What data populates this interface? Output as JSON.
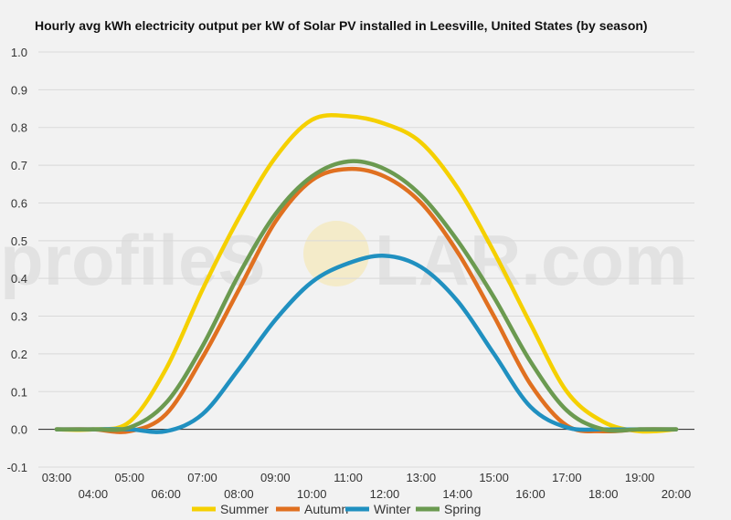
{
  "chart_data": {
    "type": "line",
    "title": "Hourly avg kWh electricity output per kW of Solar PV installed in Leesville, United States (by season)",
    "xlabel": "",
    "ylabel": "",
    "ylim": [
      -0.1,
      1.0
    ],
    "yticks": [
      "-0.1",
      "0.0",
      "0.1",
      "0.2",
      "0.3",
      "0.4",
      "0.5",
      "0.6",
      "0.7",
      "0.8",
      "0.9",
      "1.0"
    ],
    "categories": [
      "03:00",
      "04:00",
      "05:00",
      "06:00",
      "07:00",
      "08:00",
      "09:00",
      "10:00",
      "11:00",
      "12:00",
      "13:00",
      "14:00",
      "15:00",
      "16:00",
      "17:00",
      "18:00",
      "19:00",
      "20:00"
    ],
    "grid": true,
    "legend_position": "bottom",
    "series": [
      {
        "name": "Summer",
        "color": "#f5d000",
        "values": [
          0.0,
          0.0,
          0.02,
          0.16,
          0.37,
          0.56,
          0.72,
          0.82,
          0.83,
          0.81,
          0.76,
          0.64,
          0.47,
          0.28,
          0.1,
          0.02,
          -0.005,
          0.0
        ]
      },
      {
        "name": "Autumn",
        "color": "#e07020",
        "values": [
          0.0,
          0.0,
          -0.005,
          0.04,
          0.19,
          0.37,
          0.55,
          0.66,
          0.69,
          0.67,
          0.6,
          0.47,
          0.3,
          0.12,
          0.01,
          -0.005,
          0.0,
          0.0
        ]
      },
      {
        "name": "Winter",
        "color": "#2090c0",
        "values": [
          0.0,
          0.0,
          0.0,
          -0.005,
          0.04,
          0.16,
          0.29,
          0.39,
          0.44,
          0.46,
          0.43,
          0.34,
          0.2,
          0.06,
          0.005,
          0.0,
          0.0,
          0.0
        ]
      },
      {
        "name": "Spring",
        "color": "#6b9a50",
        "values": [
          0.0,
          0.0,
          0.005,
          0.07,
          0.22,
          0.41,
          0.57,
          0.67,
          0.71,
          0.69,
          0.62,
          0.5,
          0.35,
          0.18,
          0.05,
          0.0,
          0.0,
          0.0
        ]
      }
    ]
  },
  "watermark": {
    "left_text": "profileS",
    "right_text": "LAR.com"
  }
}
